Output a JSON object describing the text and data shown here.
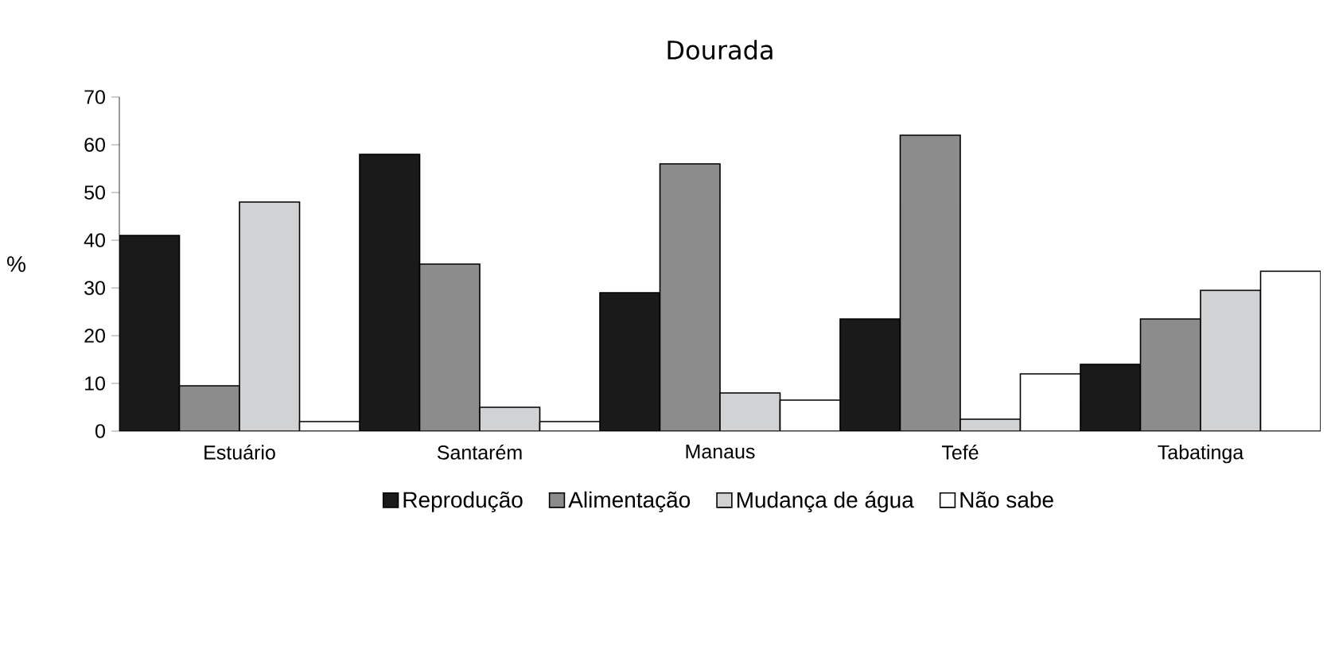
{
  "chart_data": {
    "type": "bar",
    "title": "Dourada",
    "ylabel": "%",
    "categories": [
      "Estuário",
      "Santarém",
      "Manaus",
      "Tefé",
      "Tabatinga"
    ],
    "series": [
      {
        "name": "Reprodução",
        "color": "#1a1a1a",
        "values": [
          41,
          58,
          29,
          23.5,
          14
        ]
      },
      {
        "name": "Alimentação",
        "color": "#8c8c8c",
        "values": [
          9.5,
          35,
          56,
          62,
          23.5
        ]
      },
      {
        "name": "Mudança de água",
        "color": "#d0d2d4",
        "values": [
          48,
          5,
          8,
          2.5,
          29.5
        ]
      },
      {
        "name": "Não sabe",
        "color": "#ffffff",
        "values": [
          2,
          2,
          6.5,
          12,
          33.5
        ]
      }
    ],
    "ylim": [
      0,
      70
    ],
    "yticks": [
      0,
      10,
      20,
      30,
      40,
      50,
      60,
      70
    ],
    "grid": false,
    "legend": "bottom"
  }
}
